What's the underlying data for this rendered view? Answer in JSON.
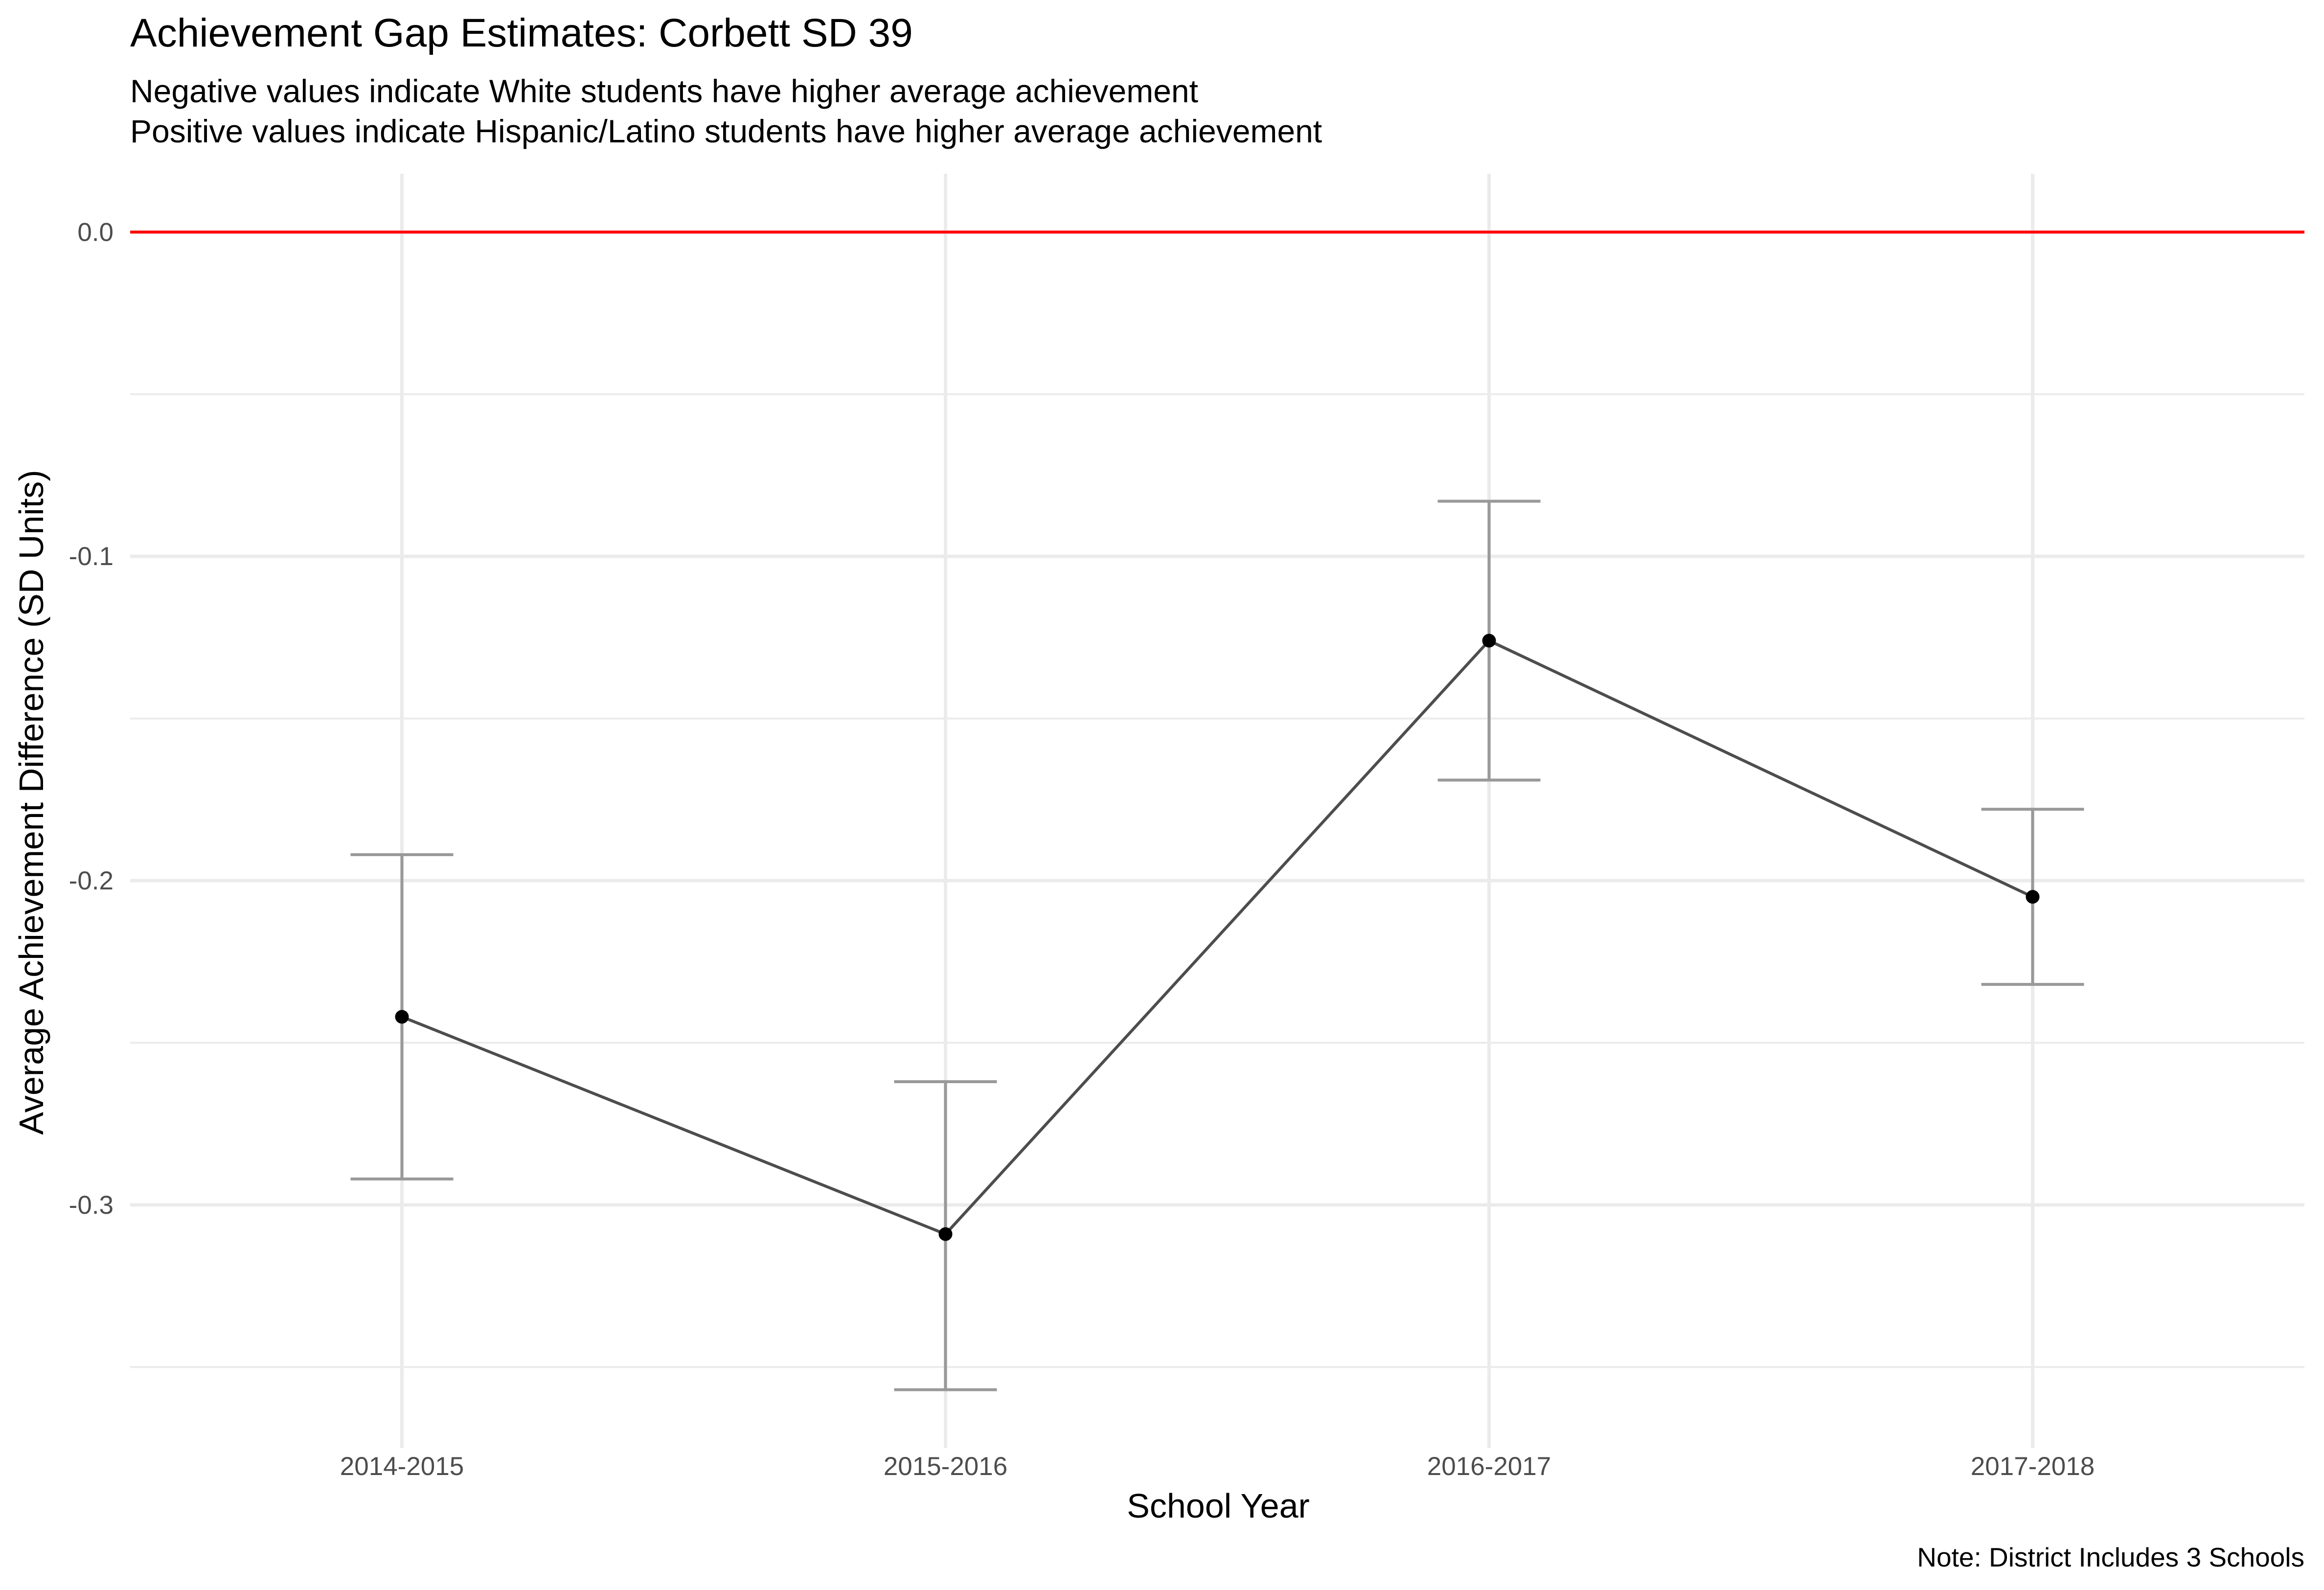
{
  "chart_data": {
    "type": "line",
    "title": "Achievement Gap Estimates: Corbett SD 39",
    "subtitle": [
      "Negative values indicate White students have higher average achievement",
      "Positive values indicate Hispanic/Latino students have higher average achievement"
    ],
    "caption": "Note: District Includes 3 Schools",
    "xlabel": "School Year",
    "ylabel": "Average Achievement Difference (SD Units)",
    "categories": [
      "2014-2015",
      "2015-2016",
      "2016-2017",
      "2017-2018"
    ],
    "values": [
      -0.242,
      -0.309,
      -0.126,
      -0.205
    ],
    "error_lower": [
      -0.292,
      -0.357,
      -0.169,
      -0.232
    ],
    "error_upper": [
      -0.192,
      -0.262,
      -0.083,
      -0.178
    ],
    "reference_line": {
      "y": 0.0,
      "color": "#ff0000"
    },
    "ylim": [
      -0.375,
      0.018
    ],
    "yticks": [
      0.0,
      -0.1,
      -0.2,
      -0.3
    ],
    "ytick_labels": [
      "0.0",
      "-0.1",
      "-0.2",
      "-0.3"
    ],
    "grid": true,
    "colors": {
      "line": "#4d4d4d",
      "point": "#000000",
      "errorbar": "#999999",
      "grid": "#ebebeb"
    }
  }
}
